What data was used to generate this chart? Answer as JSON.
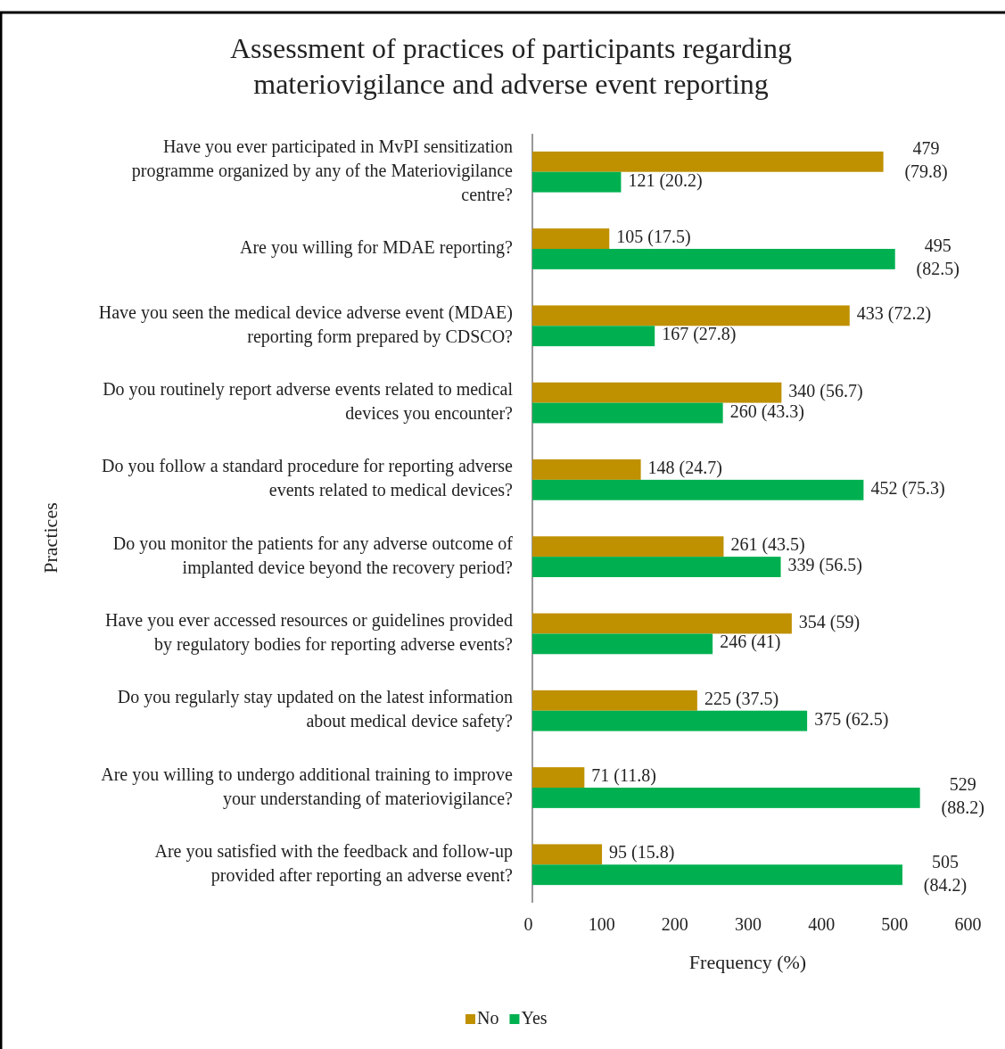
{
  "chart_data": {
    "type": "bar",
    "orientation": "horizontal",
    "title": "Assessment of practices of participants regarding materiovigilance and adverse event reporting",
    "xlabel": "Frequency (%)",
    "ylabel": "Practices",
    "categories": [
      "Have you ever participated in MvPI sensitization programme organized by any of the Materiovigilance centre?",
      "Are you willing for MDAE reporting?",
      "Have you seen the medical device adverse event (MDAE) reporting form prepared by CDSCO?",
      "Do you routinely report adverse events related to medical devices you encounter?",
      "Do you follow a standard procedure for reporting adverse events related to medical devices?",
      "Do you monitor the patients for any adverse outcome of implanted device beyond the recovery period?",
      "Have you ever accessed resources or guidelines provided by regulatory bodies for reporting adverse events?",
      "Do you regularly stay updated on the latest information about medical device safety?",
      "Are you willing to undergo additional training to improve your understanding of materiovigilance?",
      "Are you satisfied with the feedback and follow-up provided after reporting an adverse event?"
    ],
    "series": [
      {
        "name": "No",
        "color": "#bf9000",
        "values": [
          479,
          105,
          433,
          340,
          148,
          261,
          354,
          225,
          71,
          95
        ],
        "value_labels": [
          "479 (79.8)",
          "105 (17.5)",
          "433 (72.2)",
          "340 (56.7)",
          "148 (24.7)",
          "261 (43.5)",
          "354 (59)",
          "225 (37.5)",
          "71 (11.8)",
          "95 (15.8)"
        ]
      },
      {
        "name": "Yes",
        "color": "#00b050",
        "values": [
          121,
          495,
          167,
          260,
          452,
          339,
          246,
          375,
          529,
          505
        ],
        "value_labels": [
          "121 (20.2)",
          "495 (82.5)",
          "167 (27.8)",
          "260 (43.3)",
          "452 (75.3)",
          "339 (56.5)",
          "246 (41)",
          "375 (62.5)",
          "529 (88.2)",
          "505 (84.2)"
        ]
      }
    ],
    "xlim": [
      0,
      600
    ],
    "xticks": [
      0,
      100,
      200,
      300,
      400,
      500,
      600
    ],
    "legend": "bottom",
    "grid": false
  }
}
